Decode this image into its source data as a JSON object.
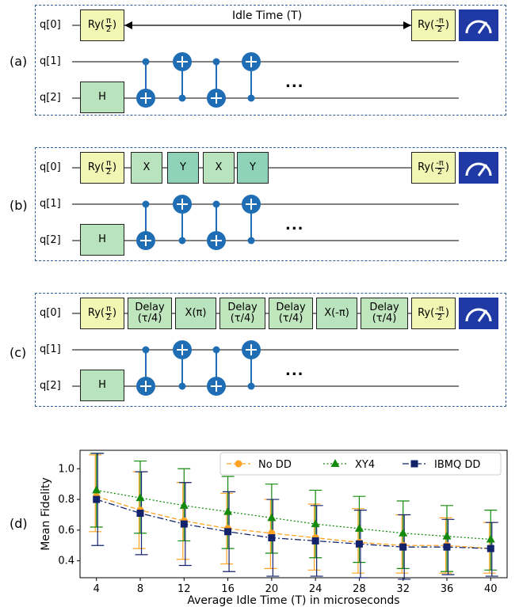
{
  "panels": {
    "a": "(a)",
    "b": "(b)",
    "c": "(c)",
    "d": "(d)"
  },
  "qubits": [
    "q[0]",
    "q[1]",
    "q[2]"
  ],
  "gates": {
    "ry_prefix": "Ry(",
    "ry_pos_num": "π",
    "ry_neg_num": "-π",
    "ry_den": "2",
    "ry_suffix": ")",
    "h": "H",
    "x": "X",
    "y": "Y",
    "delay_top": "Delay",
    "delay_bottom": "(τ/4)",
    "x_pi": "X(π)",
    "x_negpi": "X(-π)"
  },
  "idle_label": "Idle Time (T)",
  "ellipsis": "...",
  "colors": {
    "dashed_border": "#2f5f9f",
    "ctrl_blue": "#1f6db5",
    "meter_blue": "#1f3aa5",
    "no_dd": "#ffa321",
    "xy4": "#138a0b",
    "ibmq_dd": "#13236b"
  },
  "chart_data": {
    "type": "line",
    "xlabel": "Average Idle Time (T) in microseconds",
    "ylabel": "Mean Fidelity",
    "x": [
      4,
      8,
      12,
      16,
      20,
      24,
      28,
      32,
      36,
      40
    ],
    "x_ticks": [
      "4",
      "8",
      "12",
      "16",
      "20",
      "24",
      "28",
      "32",
      "36",
      "40"
    ],
    "y_ticks": [
      "0.4",
      "0.6",
      "0.8",
      "1.0"
    ],
    "xlim": [
      2.5,
      41.5
    ],
    "ylim": [
      0.29,
      1.12
    ],
    "grid": false,
    "legend_position": "top-right",
    "series": [
      {
        "name": "No DD",
        "color": "#ffa321",
        "marker": "circle",
        "linestyle": "dashed",
        "values": [
          0.82,
          0.73,
          0.66,
          0.61,
          0.58,
          0.55,
          0.52,
          0.5,
          0.5,
          0.48
        ],
        "err_low": [
          0.59,
          0.48,
          0.41,
          0.38,
          0.35,
          0.34,
          0.32,
          0.32,
          0.32,
          0.32
        ],
        "err_high": [
          1.09,
          0.98,
          0.91,
          0.84,
          0.8,
          0.77,
          0.74,
          0.7,
          0.68,
          0.65
        ]
      },
      {
        "name": "XY4",
        "color": "#138a0b",
        "marker": "triangle",
        "linestyle": "dotted",
        "values": [
          0.86,
          0.81,
          0.76,
          0.72,
          0.68,
          0.64,
          0.61,
          0.58,
          0.56,
          0.54
        ],
        "err_low": [
          0.62,
          0.58,
          0.53,
          0.48,
          0.45,
          0.42,
          0.39,
          0.35,
          0.33,
          0.34
        ],
        "err_high": [
          1.1,
          1.05,
          1.0,
          0.95,
          0.9,
          0.86,
          0.82,
          0.79,
          0.76,
          0.73
        ]
      },
      {
        "name": "IBMQ DD",
        "color": "#13236b",
        "marker": "square",
        "linestyle": "dashdot",
        "values": [
          0.8,
          0.71,
          0.64,
          0.59,
          0.55,
          0.53,
          0.51,
          0.49,
          0.49,
          0.48
        ],
        "err_low": [
          0.5,
          0.44,
          0.37,
          0.33,
          0.3,
          0.3,
          0.29,
          0.28,
          0.31,
          0.3
        ],
        "err_high": [
          1.1,
          0.98,
          0.91,
          0.85,
          0.8,
          0.76,
          0.73,
          0.7,
          0.67,
          0.65
        ]
      }
    ]
  }
}
